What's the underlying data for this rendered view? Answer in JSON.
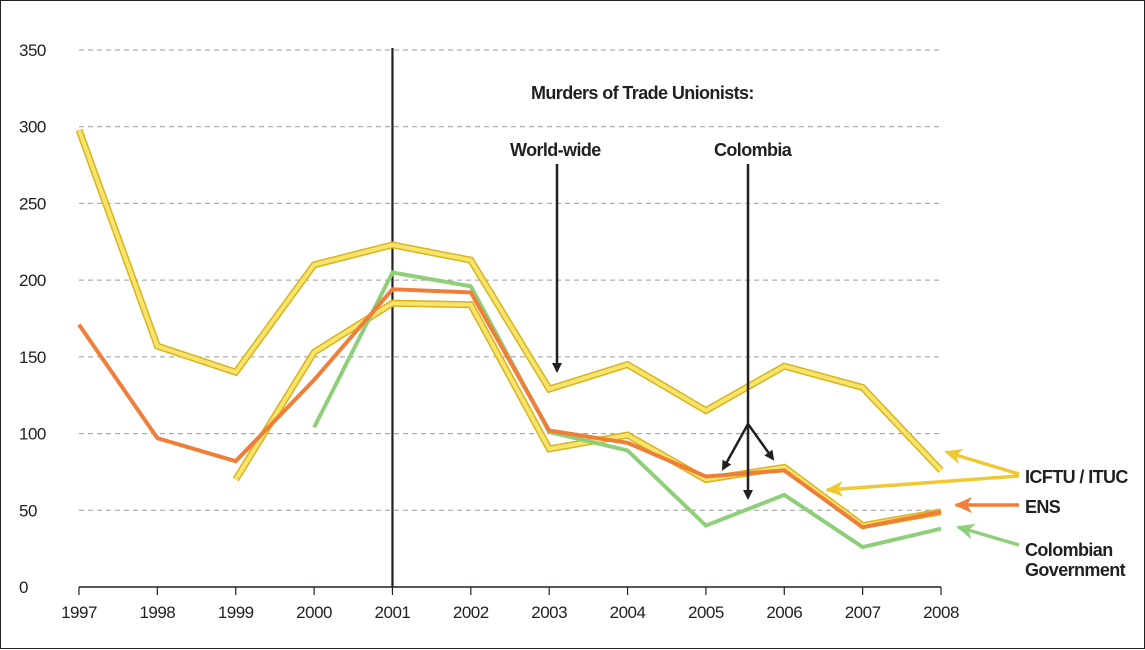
{
  "chart_data": {
    "type": "line",
    "title": "Murders of Trade Unionists:",
    "annotations": [
      "World-wide",
      "Colombia"
    ],
    "xlabel": "",
    "ylabel": "",
    "x": [
      "1997",
      "1998",
      "1999",
      "2000",
      "2001",
      "2002",
      "2003",
      "2004",
      "2005",
      "2006",
      "2007",
      "2008"
    ],
    "ylim": [
      0,
      350
    ],
    "yticks": [
      0,
      50,
      100,
      150,
      200,
      250,
      300,
      350
    ],
    "grid": "horizontal dashed",
    "reference_line_x": "2001",
    "legend": [
      "ICFTU / ITUC",
      "ENS",
      "Colombian Government"
    ],
    "legend_placement": "right",
    "series": [
      {
        "name": "ICFTU / ITUC",
        "scope": "World-wide",
        "color": "#f2d53c",
        "values": [
          298,
          157,
          140,
          210,
          223,
          213,
          129,
          145,
          115,
          144,
          130,
          76
        ]
      },
      {
        "name": "ICFTU / ITUC",
        "scope": "Colombia",
        "color": "#f2d53c",
        "values": [
          null,
          null,
          70,
          153,
          185,
          184,
          90,
          99,
          70,
          78,
          40,
          49
        ]
      },
      {
        "name": "ENS",
        "color": "#ee7e3a",
        "values": [
          171,
          97,
          82,
          135,
          194,
          192,
          102,
          94,
          72,
          76,
          39,
          49
        ]
      },
      {
        "name": "Colombian Government",
        "color": "#8fcf7a",
        "values": [
          null,
          null,
          null,
          104,
          205,
          196,
          101,
          89,
          40,
          60,
          26,
          38
        ]
      }
    ]
  }
}
